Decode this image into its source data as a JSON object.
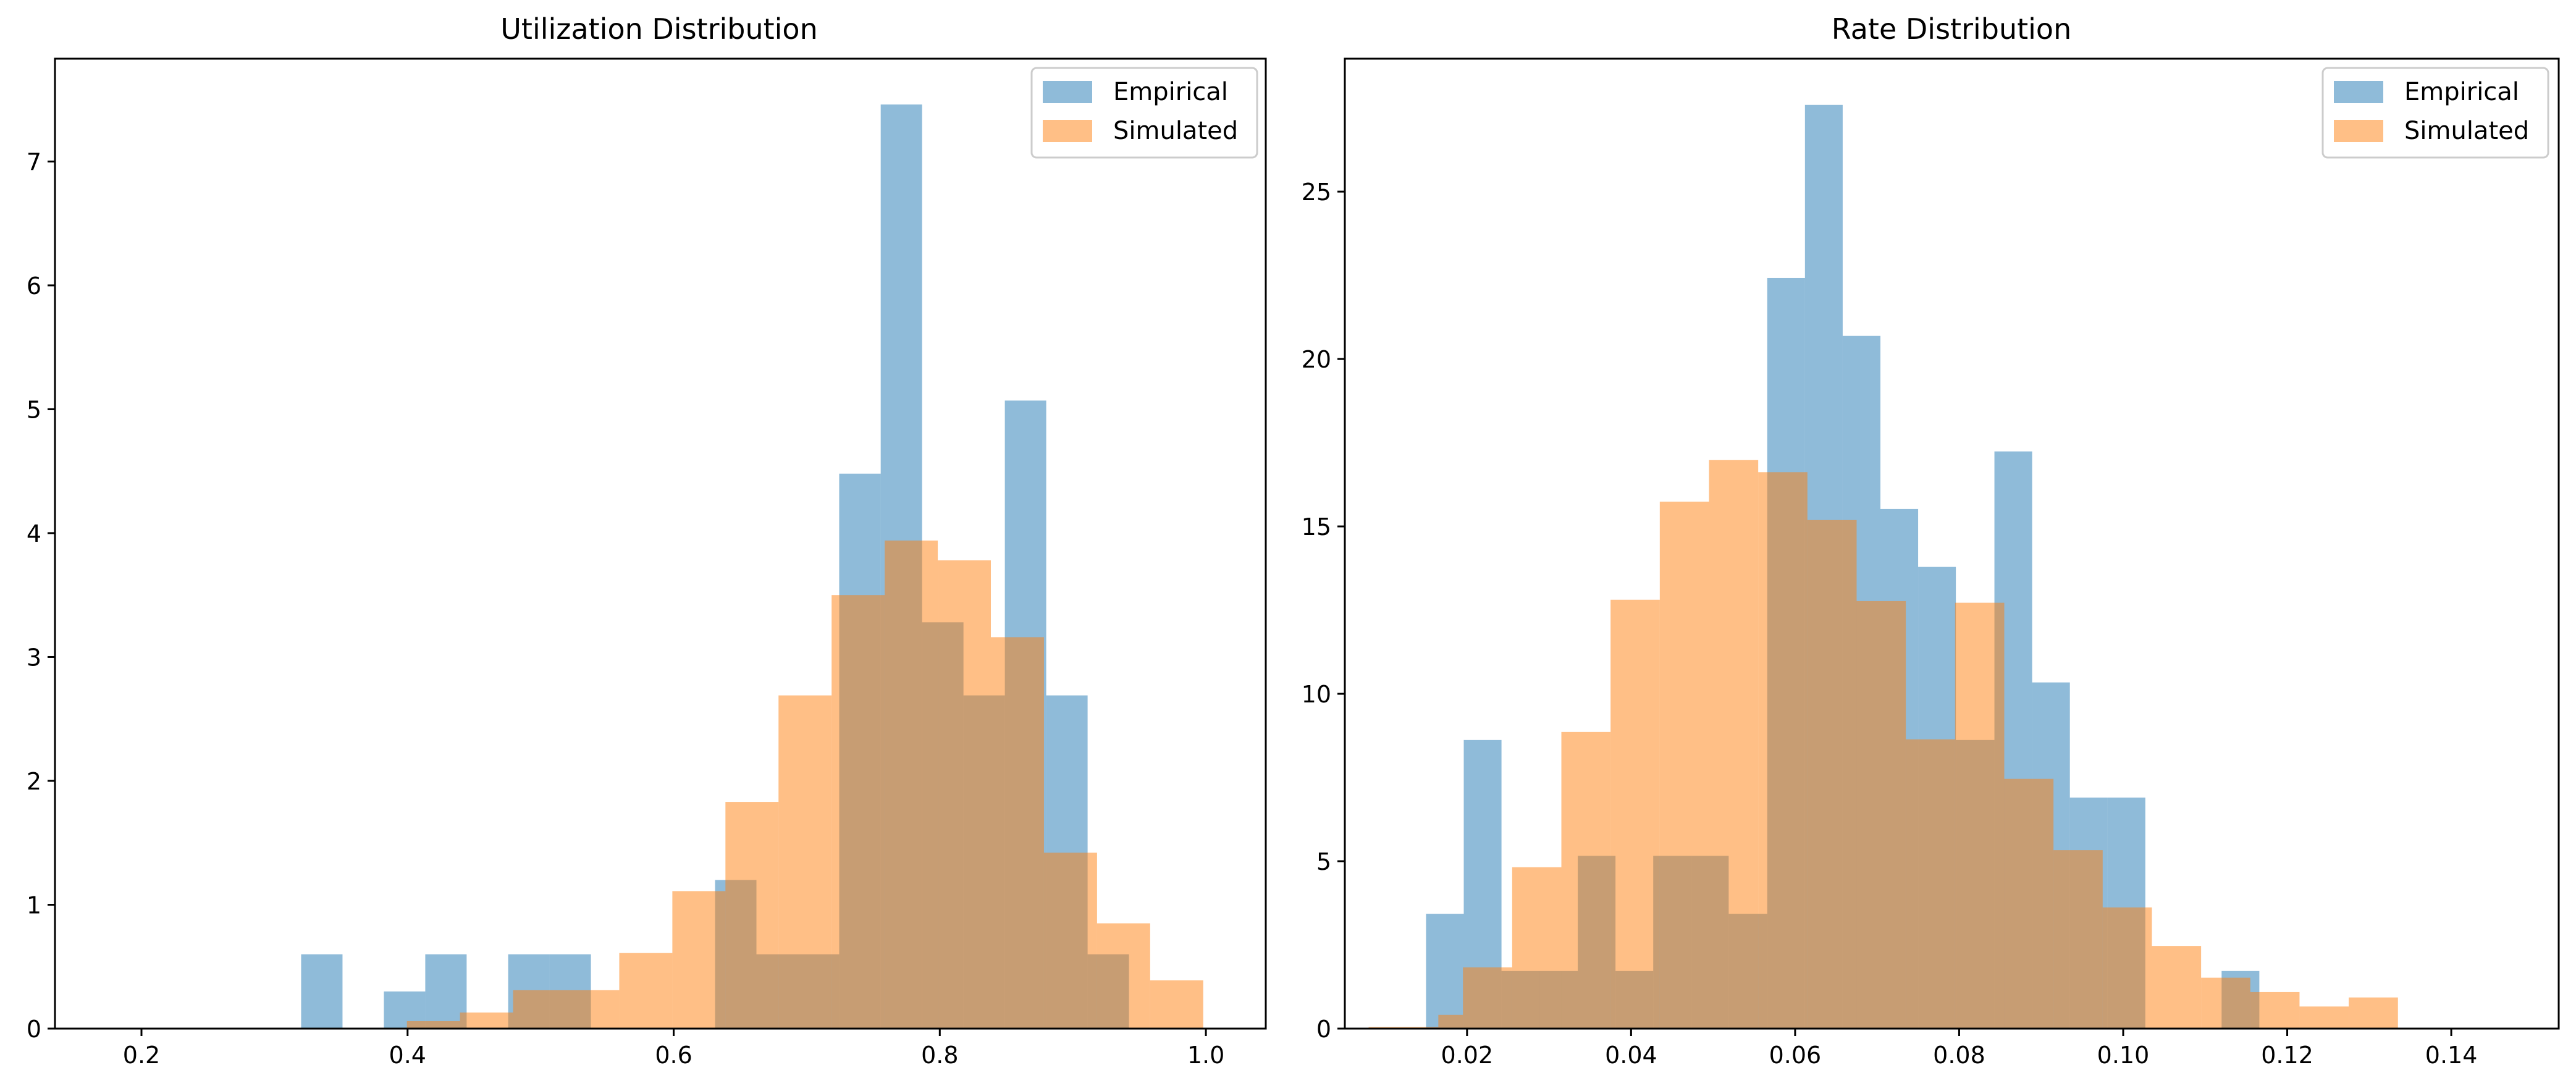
{
  "figure": {
    "background": "#ffffff"
  },
  "colors": {
    "empirical": "#1f77b4",
    "simulated": "#ff7f0e",
    "axes": "#000000"
  },
  "chart_data": [
    {
      "type": "bar",
      "title": "Utilization Distribution",
      "xlabel": "",
      "ylabel": "",
      "xlim": [
        0.135,
        1.045
      ],
      "ylim": [
        0,
        7.83
      ],
      "xticks": [
        "0.2",
        "0.4",
        "0.6",
        "0.8",
        "1.0"
      ],
      "xtick_values": [
        0.2,
        0.4,
        0.6,
        0.8,
        1.0
      ],
      "yticks": [
        "0",
        "1",
        "2",
        "3",
        "4",
        "5",
        "6",
        "7"
      ],
      "ytick_values": [
        0,
        1,
        2,
        3,
        4,
        5,
        6,
        7
      ],
      "legend": {
        "position": "top-right",
        "entries": [
          "Empirical",
          "Simulated"
        ]
      },
      "grid": false,
      "series": [
        {
          "name": "Empirical",
          "alpha": 0.5,
          "bin_edges": [
            0.32,
            0.3511,
            0.3822,
            0.4133,
            0.4444,
            0.4756,
            0.5067,
            0.5378,
            0.5689,
            0.6,
            0.6311,
            0.6622,
            0.6933,
            0.7244,
            0.7556,
            0.7867,
            0.8178,
            0.8489,
            0.88,
            0.9111,
            0.9422
          ],
          "counts": [
            0.6,
            0,
            0.3,
            0.6,
            0,
            0.6,
            0.6,
            0,
            0,
            0,
            1.2,
            0.6,
            0.6,
            4.48,
            7.46,
            3.28,
            2.69,
            5.07,
            2.69,
            0.6
          ]
        },
        {
          "name": "Simulated",
          "alpha": 0.5,
          "bin_edges": [
            0.2,
            0.2415,
            0.283,
            0.3245,
            0.366,
            0.4075,
            0.449,
            0.4905,
            0.532,
            0.5735,
            0.615,
            0.6565,
            0.698,
            0.7395,
            0.781,
            0.8225,
            0.864,
            0.9055,
            0.947,
            0.9885,
            1.0
          ],
          "bin_edges_full": [
            0.2,
            0.2399,
            0.2798,
            0.3197,
            0.3596,
            0.3995,
            0.4394,
            0.4793,
            0.5192,
            0.5591,
            0.599,
            0.6389,
            0.6788,
            0.7187,
            0.7586,
            0.7985,
            0.8384,
            0.8783,
            0.9182,
            0.9581,
            0.998
          ],
          "counts": [
            0,
            0,
            0,
            0,
            0,
            0.06,
            0.13,
            0.31,
            0.31,
            0.61,
            1.11,
            1.83,
            2.69,
            3.5,
            3.94,
            3.78,
            3.16,
            1.42,
            0.85,
            0.39
          ]
        }
      ]
    },
    {
      "type": "bar",
      "title": "Rate Distribution",
      "xlabel": "",
      "ylabel": "",
      "xlim": [
        0.0051,
        0.1531
      ],
      "ylim": [
        0,
        28.97
      ],
      "xticks": [
        "0.02",
        "0.04",
        "0.06",
        "0.08",
        "0.10",
        "0.12",
        "0.14"
      ],
      "xtick_values": [
        0.02,
        0.04,
        0.06,
        0.08,
        0.1,
        0.12,
        0.14
      ],
      "yticks": [
        "0",
        "5",
        "10",
        "15",
        "20",
        "25"
      ],
      "ytick_values": [
        0,
        5,
        10,
        15,
        20,
        25
      ],
      "legend": {
        "position": "top-right",
        "entries": [
          "Empirical",
          "Simulated"
        ]
      },
      "grid": false,
      "series": [
        {
          "name": "Empirical",
          "alpha": 0.5,
          "bin_edges_full": [
            0.015,
            0.0196,
            0.0242,
            0.0289,
            0.0335,
            0.0381,
            0.0427,
            0.0473,
            0.0519,
            0.0566,
            0.0612,
            0.0658,
            0.0704,
            0.075,
            0.0796,
            0.0843,
            0.0889,
            0.0935,
            0.0981,
            0.1027,
            0.1073,
            0.112,
            0.1166,
            0.1212
          ],
          "counts": [
            3.43,
            8.62,
            1.72,
            1.72,
            5.16,
            1.72,
            5.16,
            5.16,
            3.43,
            22.42,
            27.59,
            20.69,
            15.52,
            13.79,
            8.62,
            17.24,
            10.34,
            6.9,
            6.9,
            0,
            0,
            1.72,
            0
          ]
        },
        {
          "name": "Simulated",
          "alpha": 0.5,
          "bin_edges_full": [
            0.008,
            0.0165,
            0.0195,
            0.0255,
            0.0315,
            0.0375,
            0.0435,
            0.0495,
            0.0555,
            0.0615,
            0.0675,
            0.0735,
            0.0795,
            0.0855,
            0.0915,
            0.0975,
            0.1035,
            0.1095,
            0.1155,
            0.1215,
            0.1275,
            0.1335,
            0.1395,
            0.1455,
            0.15
          ],
          "counts": [
            0.05,
            0.41,
            1.83,
            4.82,
            8.86,
            12.81,
            15.74,
            16.98,
            16.62,
            15.19,
            12.77,
            8.64,
            12.72,
            7.46,
            5.33,
            3.62,
            2.47,
            1.52,
            1.09,
            0.66,
            0.93,
            0,
            0,
            0
          ]
        }
      ]
    }
  ]
}
